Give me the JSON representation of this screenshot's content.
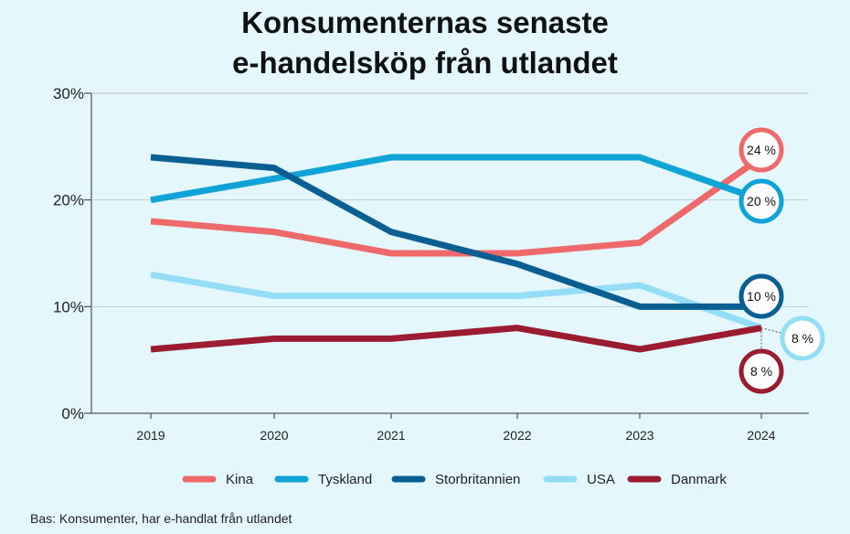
{
  "chart_data": {
    "type": "line",
    "title_lines": [
      "Konsumenternas senaste",
      "e-handelsköp från utlandet"
    ],
    "categories": [
      "2019",
      "2020",
      "2021",
      "2022",
      "2023",
      "2024"
    ],
    "ylim": [
      0,
      30
    ],
    "yticks": [
      "0%",
      "10%",
      "20%",
      "30%"
    ],
    "series": [
      {
        "name": "Kina",
        "color": "#ee6a6a",
        "values": [
          18,
          17,
          15,
          15,
          16,
          24
        ],
        "end_label": "24 %"
      },
      {
        "name": "Tyskland",
        "color": "#0fa3d7",
        "values": [
          20,
          22,
          24,
          24,
          24,
          20
        ],
        "end_label": "20 %"
      },
      {
        "name": "Storbritannien",
        "color": "#0a5f92",
        "values": [
          24,
          23,
          17,
          14,
          10,
          10
        ],
        "end_label": "10 %"
      },
      {
        "name": "USA",
        "color": "#93ddf6",
        "values": [
          13,
          11,
          11,
          11,
          12,
          8
        ],
        "end_label": "8 %"
      },
      {
        "name": "Danmark",
        "color": "#9b1c31",
        "values": [
          6,
          7,
          7,
          8,
          6,
          8
        ],
        "end_label": "8 %"
      }
    ],
    "footnote": "Bas: Konsumenter, har e-handlat från utlandet"
  }
}
